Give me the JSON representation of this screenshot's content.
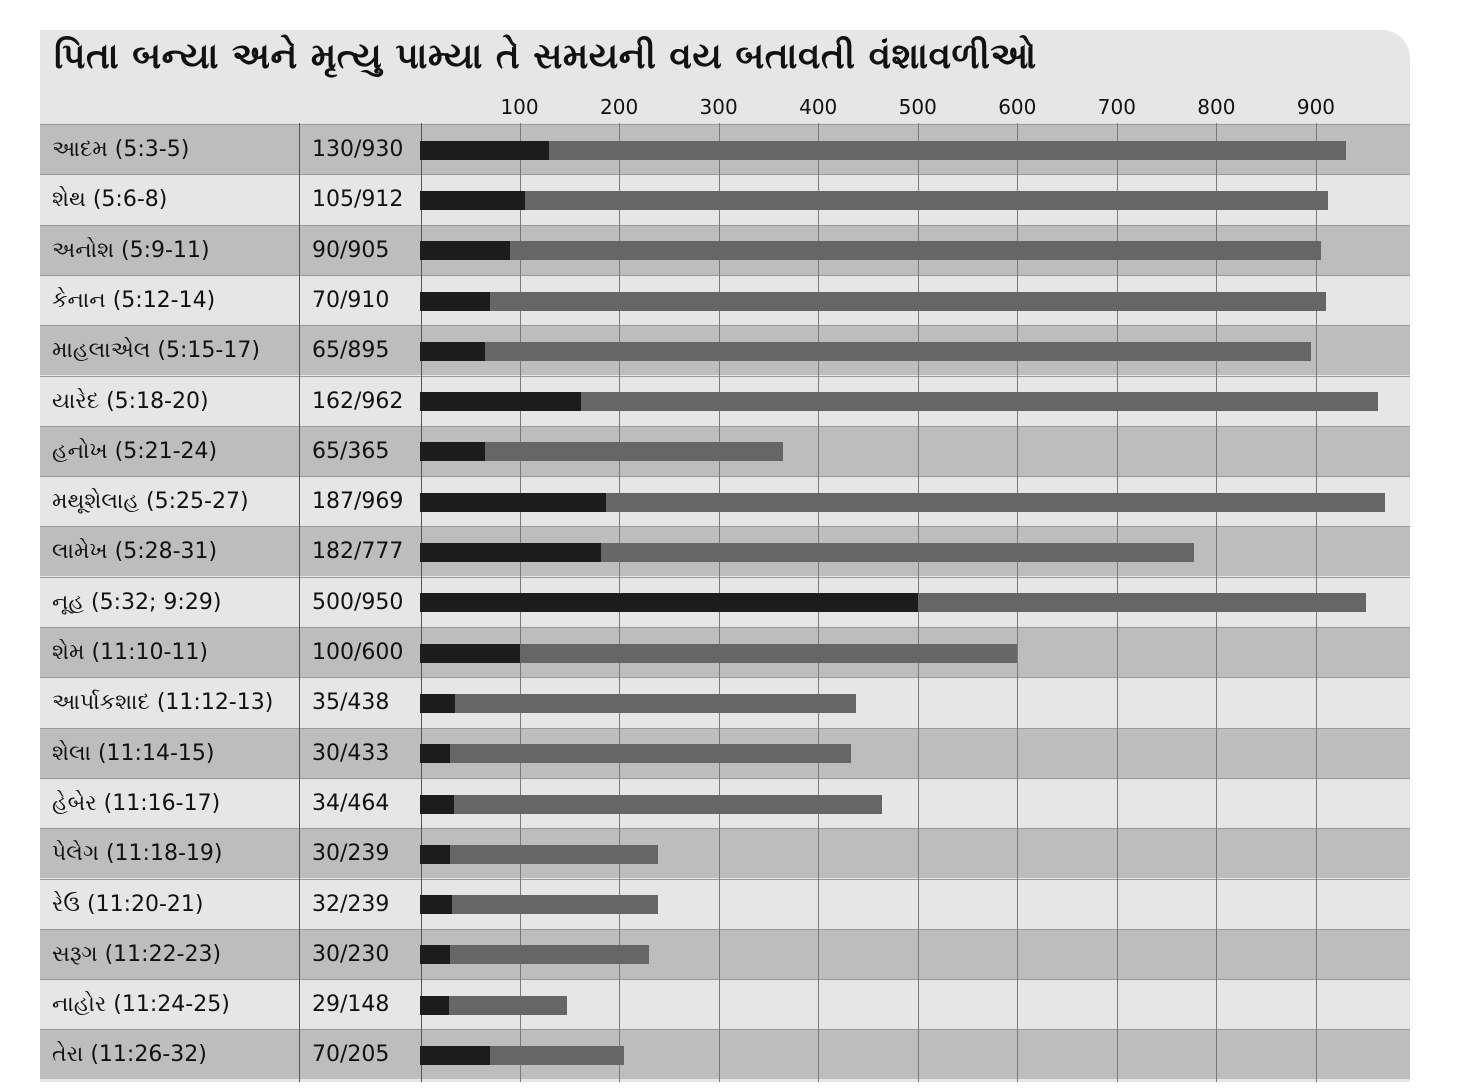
{
  "chart_data": {
    "type": "bar",
    "orientation": "horizontal",
    "stacked": true,
    "title": "પિતા બન્યા અને મૃત્યુ પામ્યા તે સમયની વય બતાવતી વંશાવળીઓ",
    "xlim": [
      0,
      960
    ],
    "x_ticks": [
      100,
      200,
      300,
      400,
      500,
      600,
      700,
      800,
      900
    ],
    "grid": true,
    "colors": {
      "father_age": "#1c1c1c",
      "death_age": "#666666",
      "row_dark": "#bdbdbd",
      "row_light": "#e6e6e6"
    },
    "rows": [
      {
        "name": "આદમ (5:3-5)",
        "label": "130/930",
        "father_age": 130,
        "death_age": 930
      },
      {
        "name": "શેથ (5:6-8)",
        "label": "105/912",
        "father_age": 105,
        "death_age": 912
      },
      {
        "name": "અનોશ (5:9-11)",
        "label": "90/905",
        "father_age": 90,
        "death_age": 905
      },
      {
        "name": "કેનાન (5:12-14)",
        "label": "70/910",
        "father_age": 70,
        "death_age": 910
      },
      {
        "name": "માહલાએલ (5:15-17)",
        "label": "65/895",
        "father_age": 65,
        "death_age": 895
      },
      {
        "name": "યારેદ (5:18-20)",
        "label": "162/962",
        "father_age": 162,
        "death_age": 962
      },
      {
        "name": "હનોખ (5:21-24)",
        "label": "65/365",
        "father_age": 65,
        "death_age": 365
      },
      {
        "name": "મથૂશેલાહ (5:25-27)",
        "label": "187/969",
        "father_age": 187,
        "death_age": 969
      },
      {
        "name": "લામેખ (5:28-31)",
        "label": "182/777",
        "father_age": 182,
        "death_age": 777
      },
      {
        "name": "નૂહ (5:32; 9:29)",
        "label": "500/950",
        "father_age": 500,
        "death_age": 950
      },
      {
        "name": "શેમ (11:10-11)",
        "label": "100/600",
        "father_age": 100,
        "death_age": 600
      },
      {
        "name": "આર્પાકશાદ (11:12-13)",
        "label": "35/438",
        "father_age": 35,
        "death_age": 438
      },
      {
        "name": "શેલા (11:14-15)",
        "label": "30/433",
        "father_age": 30,
        "death_age": 433
      },
      {
        "name": "હેબેર (11:16-17)",
        "label": "34/464",
        "father_age": 34,
        "death_age": 464
      },
      {
        "name": "પેલેગ (11:18-19)",
        "label": "30/239",
        "father_age": 30,
        "death_age": 239
      },
      {
        "name": "રેઉ (11:20-21)",
        "label": "32/239",
        "father_age": 32,
        "death_age": 239
      },
      {
        "name": "સરૂગ (11:22-23)",
        "label": "30/230",
        "father_age": 30,
        "death_age": 230
      },
      {
        "name": "નાહોર (11:24-25)",
        "label": "29/148",
        "father_age": 29,
        "death_age": 148
      },
      {
        "name": "તેરા (11:26-32)",
        "label": "70/205",
        "father_age": 70,
        "death_age": 205
      }
    ]
  }
}
